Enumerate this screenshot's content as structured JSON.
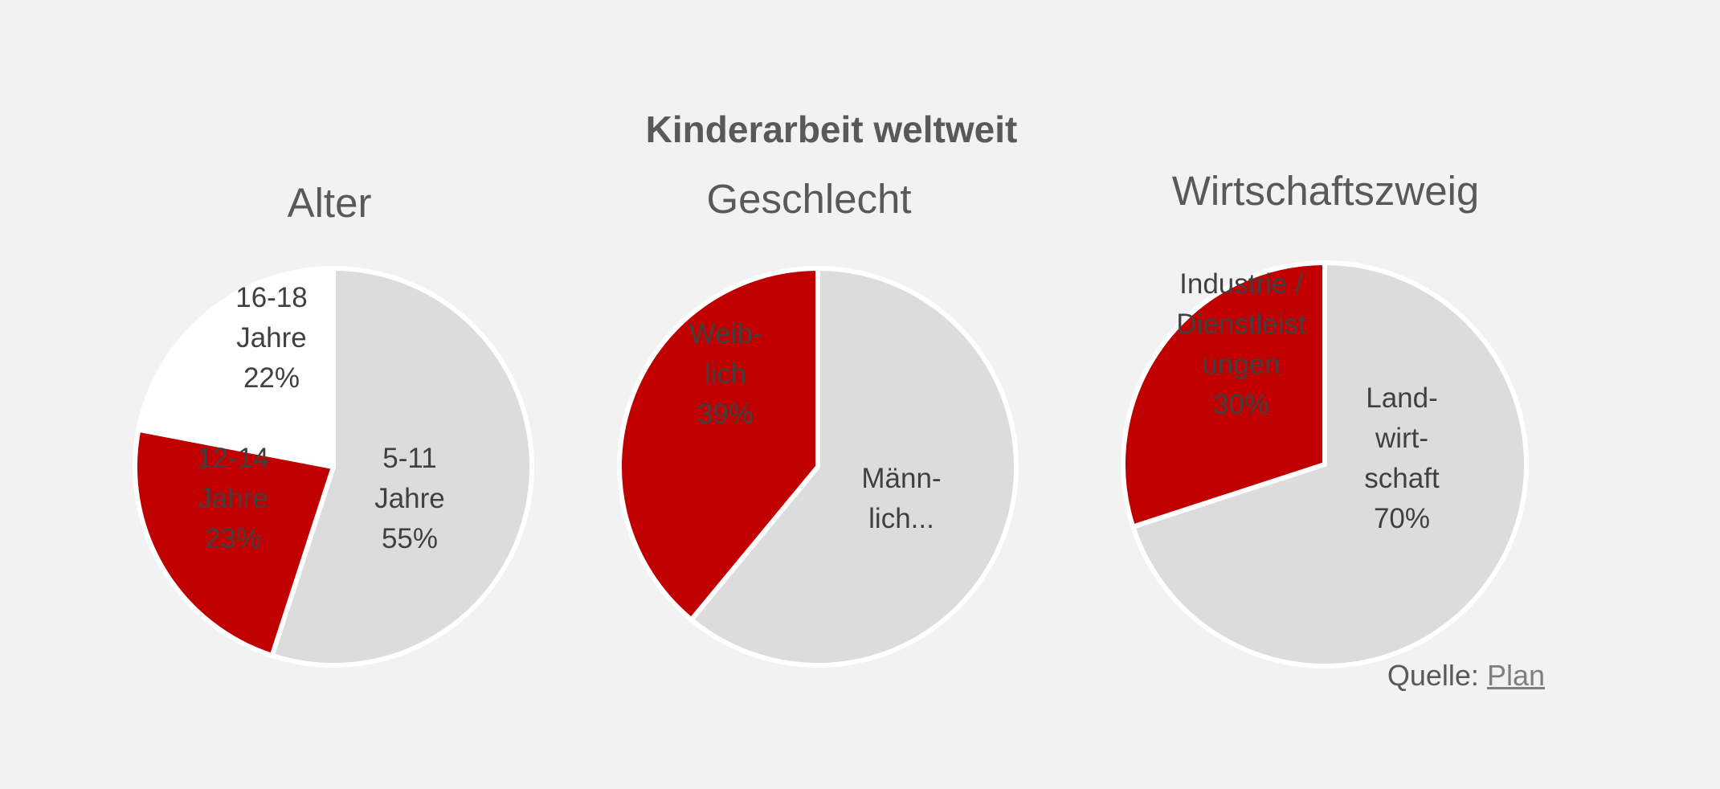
{
  "title": "Kinderarbeit weltweit",
  "source": {
    "label": "Quelle:",
    "link": "Plan"
  },
  "colors": {
    "red": "#c00000",
    "grey": "#dcdcdc",
    "white": "#ffffff",
    "edge": "#ffffff"
  },
  "chart_data": [
    {
      "type": "pie",
      "title": "Alter",
      "slices": [
        {
          "label": [
            "5-11",
            "Jahre",
            "55%"
          ],
          "value": 55,
          "color": "#dcdcdc"
        },
        {
          "label": [
            "12-14",
            "Jahre",
            "23%"
          ],
          "value": 23,
          "color": "#c00000"
        },
        {
          "label": [
            "16-18",
            "Jahre",
            "22%"
          ],
          "value": 22,
          "color": "#ffffff"
        }
      ]
    },
    {
      "type": "pie",
      "title": "Geschlecht",
      "slices": [
        {
          "label": [
            "Männ-",
            "lich..."
          ],
          "value": 61,
          "color": "#dcdcdc"
        },
        {
          "label": [
            "Weib-",
            "lich",
            "39%"
          ],
          "value": 39,
          "color": "#c00000"
        }
      ]
    },
    {
      "type": "pie",
      "title": "Wirtschaftszweig",
      "slices": [
        {
          "label": [
            "Land-",
            "wirt-",
            "schaft",
            "70%"
          ],
          "value": 70,
          "color": "#dcdcdc"
        },
        {
          "label": [
            "Industrie /",
            "Dienstleist",
            "ungen",
            "30%"
          ],
          "value": 30,
          "color": "#c00000"
        }
      ]
    }
  ]
}
